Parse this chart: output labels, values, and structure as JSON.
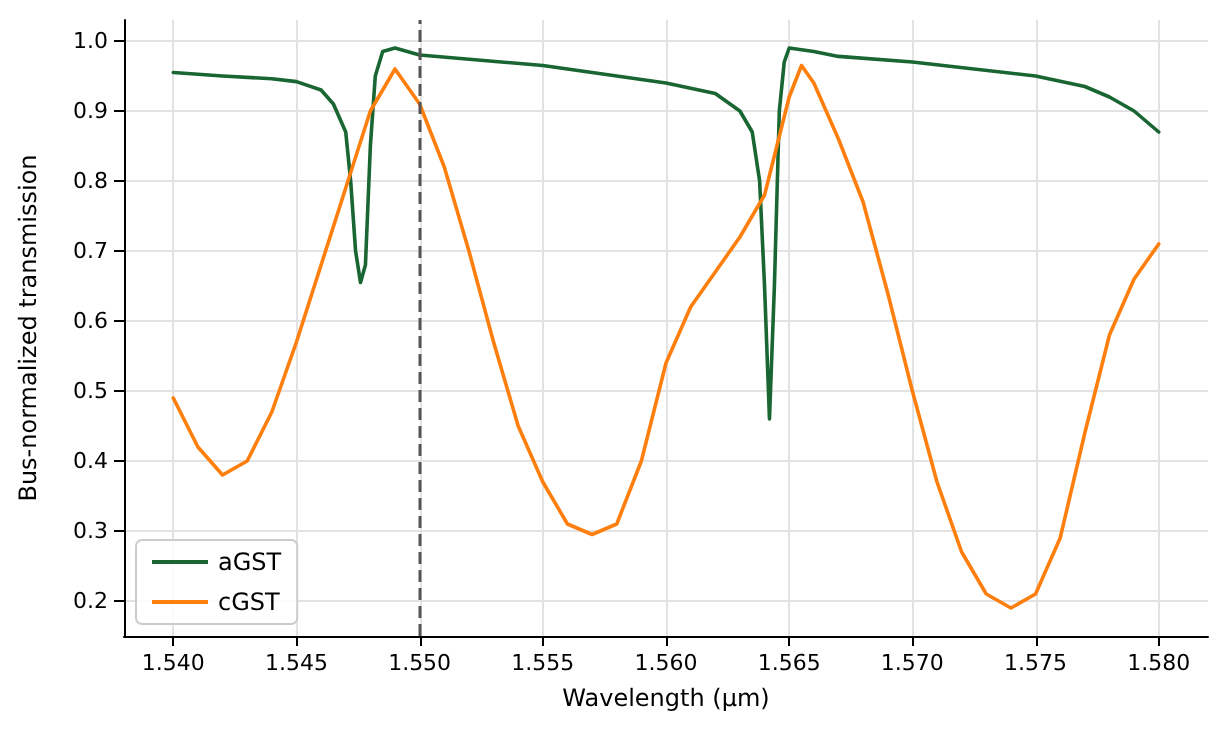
{
  "chart_data": {
    "type": "line",
    "xlabel": "Wavelength (µm)",
    "ylabel": "Bus-normalized transmission",
    "xlim": [
      1.538,
      1.582
    ],
    "ylim": [
      0.15,
      1.03
    ],
    "xticks": [
      {
        "value": 1.54,
        "label": "1.540"
      },
      {
        "value": 1.545,
        "label": "1.545"
      },
      {
        "value": 1.55,
        "label": "1.550"
      },
      {
        "value": 1.555,
        "label": "1.555"
      },
      {
        "value": 1.56,
        "label": "1.560"
      },
      {
        "value": 1.565,
        "label": "1.565"
      },
      {
        "value": 1.57,
        "label": "1.570"
      },
      {
        "value": 1.575,
        "label": "1.575"
      },
      {
        "value": 1.58,
        "label": "1.580"
      }
    ],
    "yticks": [
      0.2,
      0.3,
      0.4,
      0.5,
      0.6,
      0.7,
      0.8,
      0.9,
      {
        "value": 1,
        "label": "1.0"
      }
    ],
    "grid": true,
    "legend": "bottom left",
    "line_style": "solid",
    "marker": "none",
    "ref_lines": [
      {
        "axis": "x",
        "value": 1.55,
        "color": "#555555",
        "line_style": "dashed"
      }
    ],
    "series": [
      {
        "name": "aGST",
        "color": "#1a6632",
        "x": [
          1.54,
          1.542,
          1.544,
          1.545,
          1.546,
          1.5465,
          1.547,
          1.5472,
          1.5474,
          1.5476,
          1.5478,
          1.548,
          1.5482,
          1.5485,
          1.549,
          1.55,
          1.555,
          1.56,
          1.562,
          1.563,
          1.5635,
          1.5638,
          1.564,
          1.5642,
          1.5644,
          1.5646,
          1.5648,
          1.565,
          1.566,
          1.567,
          1.57,
          1.575,
          1.577,
          1.578,
          1.579,
          1.58
        ],
        "values": [
          0.955,
          0.95,
          0.946,
          0.942,
          0.93,
          0.91,
          0.87,
          0.8,
          0.7,
          0.655,
          0.68,
          0.85,
          0.95,
          0.985,
          0.99,
          0.98,
          0.965,
          0.94,
          0.925,
          0.9,
          0.87,
          0.8,
          0.65,
          0.46,
          0.65,
          0.9,
          0.97,
          0.99,
          0.985,
          0.978,
          0.97,
          0.95,
          0.935,
          0.92,
          0.9,
          0.87
        ]
      },
      {
        "name": "cGST",
        "color": "#ff7f0e",
        "x": [
          1.54,
          1.541,
          1.542,
          1.543,
          1.544,
          1.545,
          1.546,
          1.547,
          1.548,
          1.549,
          1.55,
          1.551,
          1.552,
          1.553,
          1.554,
          1.555,
          1.556,
          1.557,
          1.558,
          1.559,
          1.56,
          1.561,
          1.562,
          1.563,
          1.564,
          1.565,
          1.5655,
          1.566,
          1.567,
          1.568,
          1.569,
          1.57,
          1.571,
          1.572,
          1.573,
          1.574,
          1.575,
          1.576,
          1.577,
          1.578,
          1.579,
          1.58
        ],
        "values": [
          0.49,
          0.42,
          0.38,
          0.4,
          0.47,
          0.57,
          0.68,
          0.79,
          0.9,
          0.96,
          0.91,
          0.82,
          0.7,
          0.57,
          0.45,
          0.37,
          0.31,
          0.295,
          0.31,
          0.4,
          0.54,
          0.62,
          0.67,
          0.72,
          0.78,
          0.92,
          0.965,
          0.94,
          0.86,
          0.77,
          0.64,
          0.5,
          0.37,
          0.27,
          0.21,
          0.19,
          0.21,
          0.29,
          0.44,
          0.58,
          0.66,
          0.71
        ]
      }
    ]
  }
}
